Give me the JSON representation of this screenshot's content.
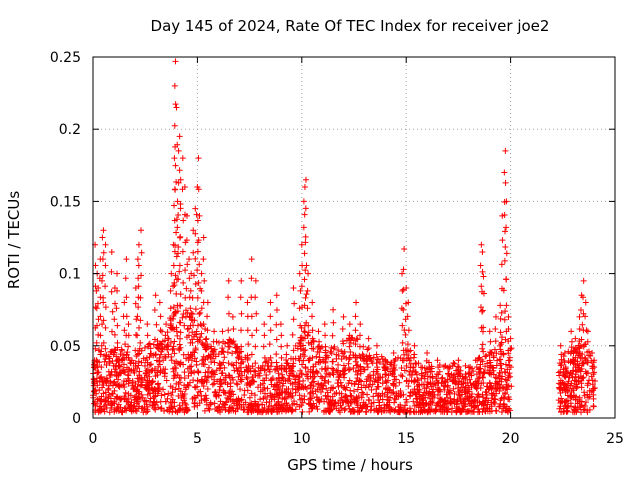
{
  "chart_data": {
    "type": "scatter",
    "title": "Day 145 of 2024, Rate Of TEC Index for receiver joe2",
    "xlabel": "GPS time / hours",
    "ylabel": "ROTI / TECUs",
    "xlim": [
      0,
      25
    ],
    "ylim": [
      0,
      0.25
    ],
    "x_ticks": [
      "0",
      "5",
      "10",
      "15",
      "20",
      "25"
    ],
    "y_ticks": [
      "0",
      "0.05",
      "0.1",
      "0.15",
      "0.2",
      "0.25"
    ],
    "grid": true,
    "marker": "+",
    "series": [
      {
        "color": "#ff0000",
        "points": [
          [
            0.05,
            0.035
          ],
          [
            0.1,
            0.12
          ],
          [
            0.2,
            0.1
          ],
          [
            0.25,
            0.09
          ],
          [
            0.35,
            0.11
          ],
          [
            0.45,
            0.125
          ],
          [
            0.5,
            0.13
          ],
          [
            0.6,
            0.12
          ],
          [
            0.9,
            0.115
          ],
          [
            1.05,
            0.09
          ],
          [
            1.15,
            0.1
          ],
          [
            1.5,
            0.08
          ],
          [
            1.6,
            0.11
          ],
          [
            1.7,
            0.065
          ],
          [
            2.05,
            0.09
          ],
          [
            2.15,
            0.11
          ],
          [
            2.2,
            0.12
          ],
          [
            2.3,
            0.13
          ],
          [
            2.6,
            0.065
          ],
          [
            3.0,
            0.085
          ],
          [
            3.2,
            0.08
          ],
          [
            3.5,
            0.065
          ],
          [
            3.75,
            0.1
          ],
          [
            3.85,
            0.12
          ],
          [
            3.9,
            0.18
          ],
          [
            3.92,
            0.23
          ],
          [
            3.95,
            0.247
          ],
          [
            4.0,
            0.215
          ],
          [
            4.05,
            0.15
          ],
          [
            4.1,
            0.185
          ],
          [
            4.15,
            0.195
          ],
          [
            4.2,
            0.165
          ],
          [
            4.3,
            0.18
          ],
          [
            4.4,
            0.16
          ],
          [
            4.5,
            0.14
          ],
          [
            4.6,
            0.11
          ],
          [
            4.7,
            0.1
          ],
          [
            4.8,
            0.13
          ],
          [
            4.9,
            0.145
          ],
          [
            5.0,
            0.16
          ],
          [
            5.05,
            0.18
          ],
          [
            5.1,
            0.14
          ],
          [
            5.2,
            0.1
          ],
          [
            5.3,
            0.125
          ],
          [
            5.5,
            0.08
          ],
          [
            5.8,
            0.06
          ],
          [
            6.2,
            0.06
          ],
          [
            6.5,
            0.095
          ],
          [
            6.7,
            0.07
          ],
          [
            7.1,
            0.095
          ],
          [
            7.4,
            0.08
          ],
          [
            7.6,
            0.11
          ],
          [
            7.8,
            0.095
          ],
          [
            8.2,
            0.065
          ],
          [
            8.5,
            0.08
          ],
          [
            8.8,
            0.085
          ],
          [
            9.0,
            0.065
          ],
          [
            9.3,
            0.05
          ],
          [
            9.6,
            0.09
          ],
          [
            9.9,
            0.1
          ],
          [
            10.0,
            0.12
          ],
          [
            10.1,
            0.15
          ],
          [
            10.15,
            0.16
          ],
          [
            10.2,
            0.165
          ],
          [
            10.3,
            0.1
          ],
          [
            10.5,
            0.08
          ],
          [
            10.8,
            0.06
          ],
          [
            11.1,
            0.065
          ],
          [
            11.5,
            0.075
          ],
          [
            12.0,
            0.07
          ],
          [
            12.3,
            0.065
          ],
          [
            12.6,
            0.08
          ],
          [
            12.8,
            0.065
          ],
          [
            13.2,
            0.055
          ],
          [
            13.6,
            0.05
          ],
          [
            14.0,
            0.04
          ],
          [
            14.4,
            0.045
          ],
          [
            14.8,
            0.1
          ],
          [
            14.9,
            0.117
          ],
          [
            15.0,
            0.09
          ],
          [
            15.1,
            0.08
          ],
          [
            15.4,
            0.05
          ],
          [
            16.0,
            0.045
          ],
          [
            16.5,
            0.04
          ],
          [
            17.0,
            0.035
          ],
          [
            17.5,
            0.04
          ],
          [
            18.0,
            0.035
          ],
          [
            18.4,
            0.04
          ],
          [
            18.6,
            0.12
          ],
          [
            18.65,
            0.115
          ],
          [
            18.7,
            0.098
          ],
          [
            19.0,
            0.06
          ],
          [
            19.3,
            0.07
          ],
          [
            19.5,
            0.078
          ],
          [
            19.6,
            0.14
          ],
          [
            19.7,
            0.17
          ],
          [
            19.75,
            0.185
          ],
          [
            19.8,
            0.15
          ],
          [
            19.9,
            0.07
          ],
          [
            20.0,
            0.055
          ],
          [
            22.4,
            0.05
          ],
          [
            22.6,
            0.045
          ],
          [
            22.9,
            0.06
          ],
          [
            23.1,
            0.055
          ],
          [
            23.3,
            0.07
          ],
          [
            23.4,
            0.085
          ],
          [
            23.5,
            0.095
          ],
          [
            23.6,
            0.08
          ],
          [
            23.7,
            0.06
          ],
          [
            23.9,
            0.045
          ],
          [
            24.0,
            0.04
          ]
        ]
      }
    ],
    "bands": [
      [
        0.0,
        0.03
      ],
      [
        0.3,
        0.04
      ],
      [
        0.7,
        0.035
      ],
      [
        1.2,
        0.04
      ],
      [
        1.8,
        0.035
      ],
      [
        2.4,
        0.04
      ],
      [
        3.0,
        0.045
      ],
      [
        3.4,
        0.05
      ],
      [
        3.8,
        0.06
      ],
      [
        4.2,
        0.065
      ],
      [
        4.6,
        0.06
      ],
      [
        5.0,
        0.06
      ],
      [
        5.4,
        0.05
      ],
      [
        5.8,
        0.045
      ],
      [
        6.2,
        0.04
      ],
      [
        6.6,
        0.045
      ],
      [
        7.0,
        0.04
      ],
      [
        7.4,
        0.035
      ],
      [
        7.8,
        0.03
      ],
      [
        8.2,
        0.035
      ],
      [
        8.6,
        0.03
      ],
      [
        9.0,
        0.03
      ],
      [
        9.4,
        0.035
      ],
      [
        9.8,
        0.045
      ],
      [
        10.2,
        0.05
      ],
      [
        10.6,
        0.045
      ],
      [
        11.0,
        0.04
      ],
      [
        11.4,
        0.04
      ],
      [
        11.8,
        0.04
      ],
      [
        12.2,
        0.045
      ],
      [
        12.6,
        0.045
      ],
      [
        13.0,
        0.04
      ],
      [
        13.4,
        0.035
      ],
      [
        13.8,
        0.035
      ],
      [
        14.2,
        0.03
      ],
      [
        14.6,
        0.035
      ],
      [
        15.0,
        0.04
      ],
      [
        15.4,
        0.035
      ],
      [
        15.8,
        0.03
      ],
      [
        16.2,
        0.03
      ],
      [
        16.6,
        0.03
      ],
      [
        17.0,
        0.03
      ],
      [
        17.4,
        0.03
      ],
      [
        17.8,
        0.03
      ],
      [
        18.2,
        0.03
      ],
      [
        18.6,
        0.035
      ],
      [
        19.0,
        0.035
      ],
      [
        19.4,
        0.04
      ],
      [
        19.8,
        0.045
      ],
      [
        20.0,
        0.04
      ],
      [
        22.3,
        0.035
      ],
      [
        22.6,
        0.035
      ],
      [
        22.9,
        0.04
      ],
      [
        23.2,
        0.04
      ],
      [
        23.5,
        0.045
      ],
      [
        23.8,
        0.04
      ],
      [
        24.0,
        0.035
      ]
    ]
  }
}
